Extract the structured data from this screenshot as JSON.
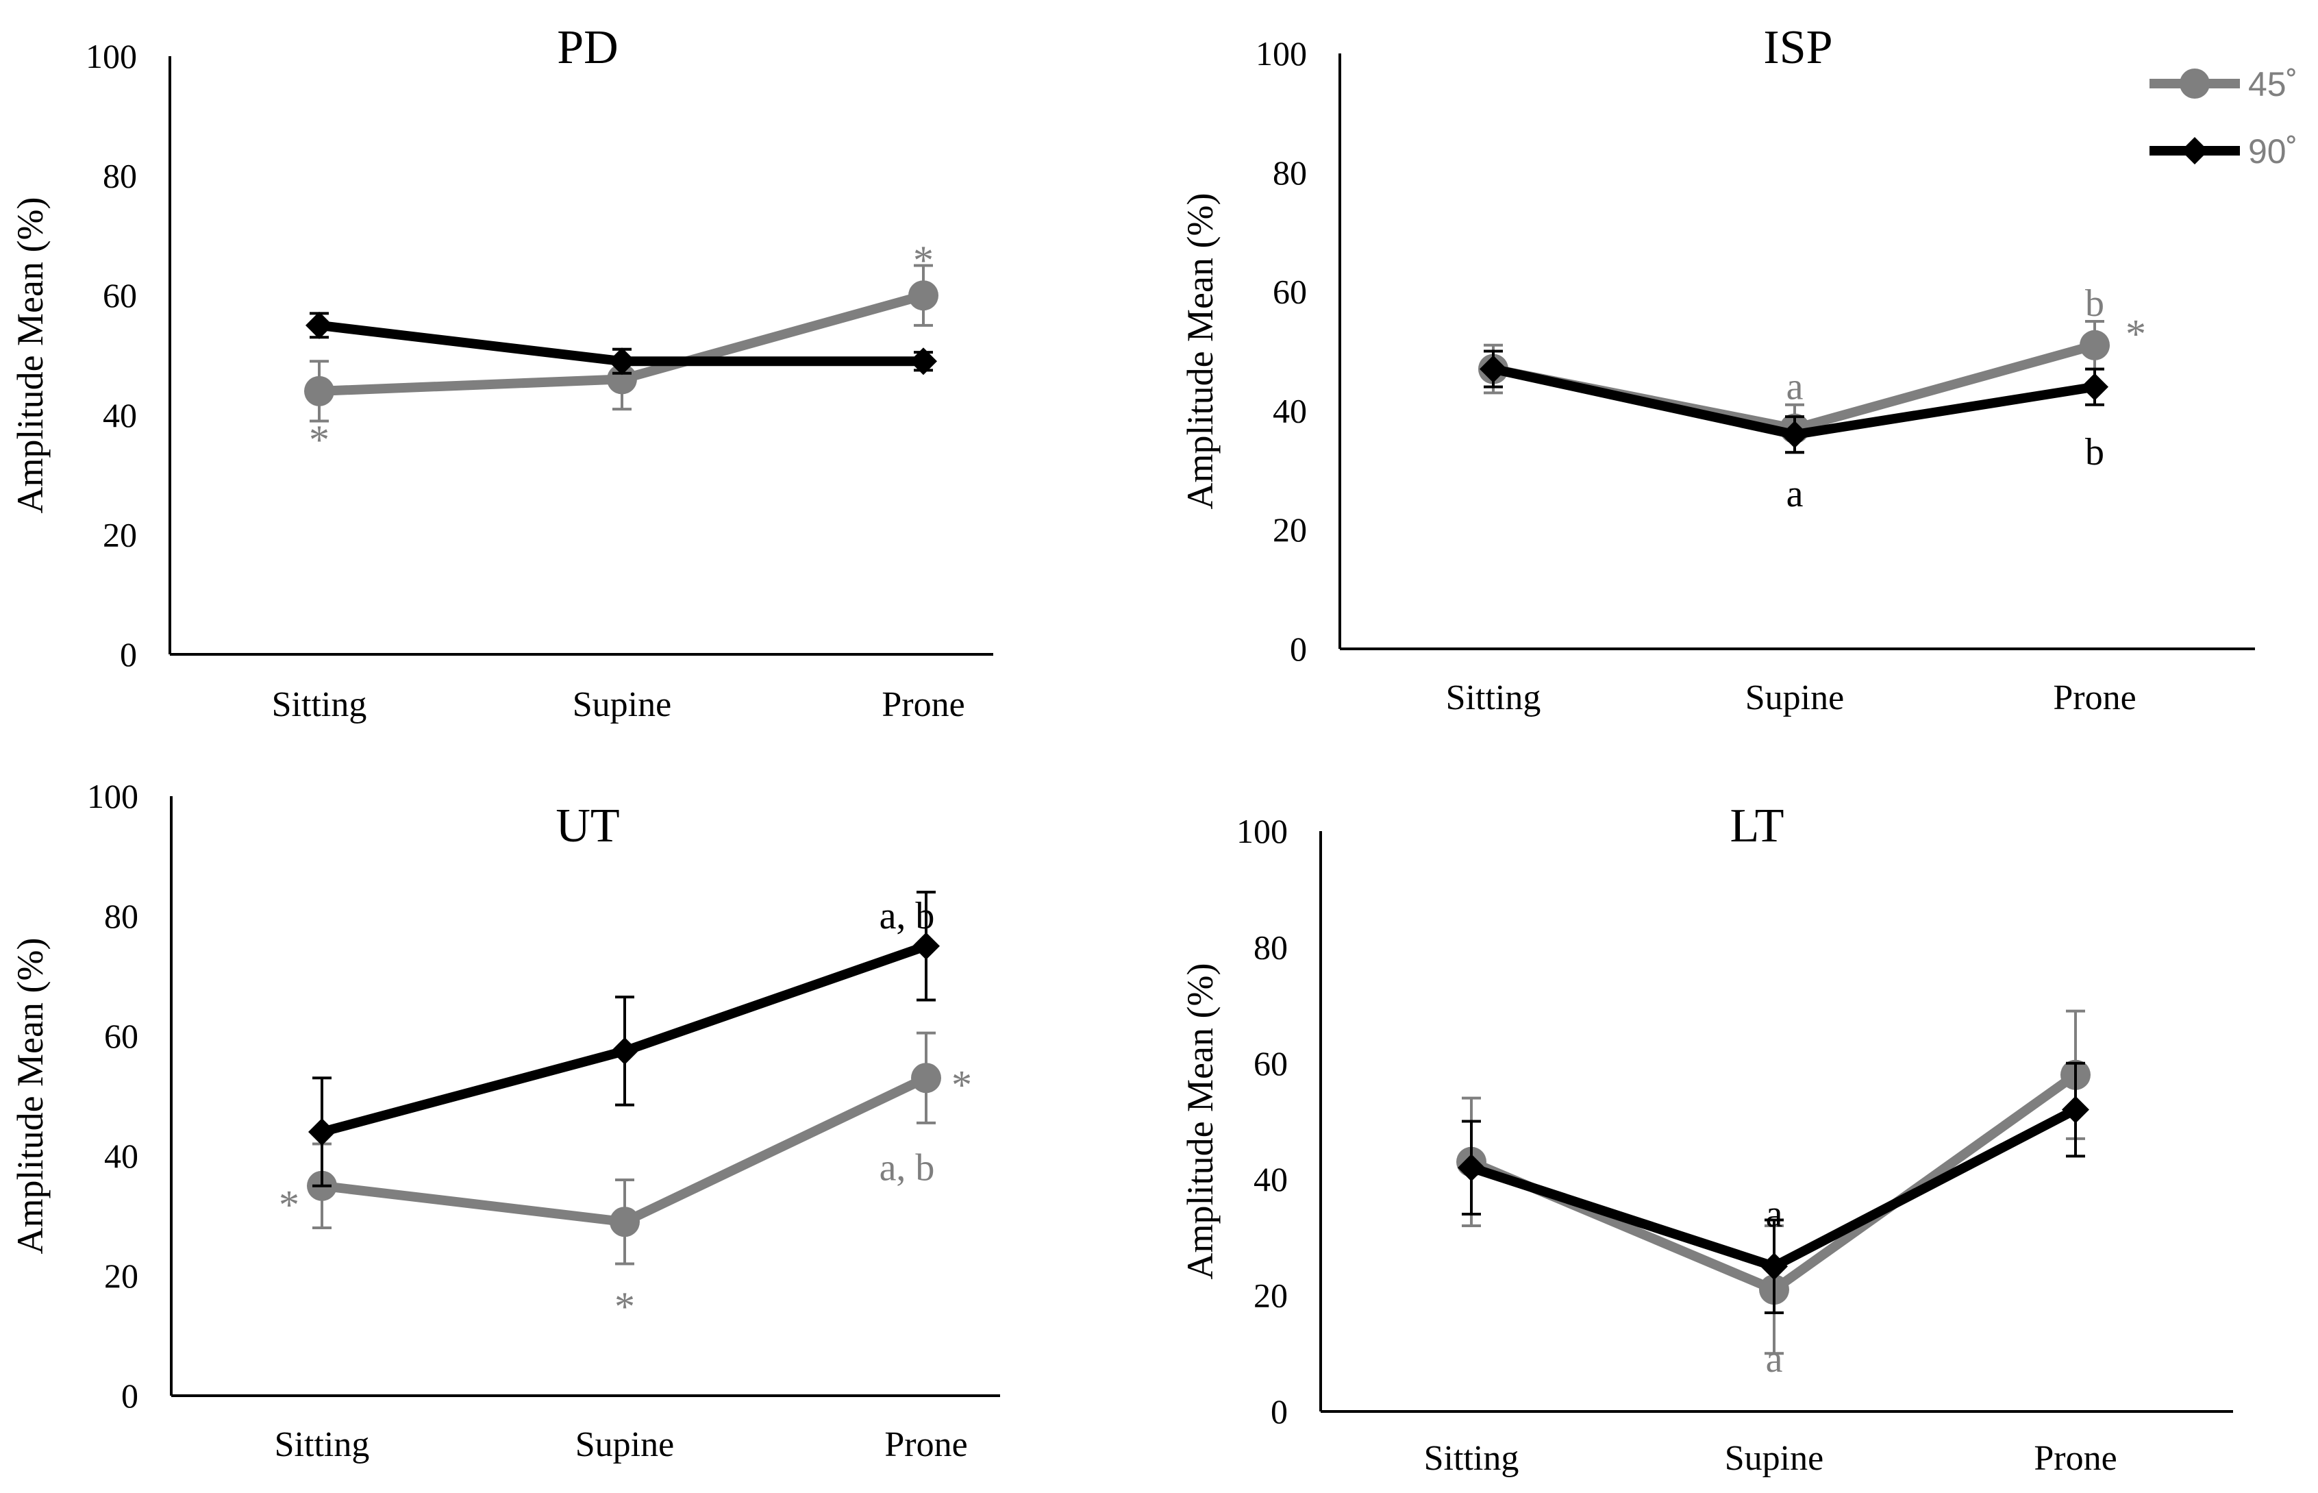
{
  "colors": {
    "deg45": "#7f7f7f",
    "deg90": "#000000",
    "axis": "#000000"
  },
  "legend": [
    {
      "name": "45˚",
      "color": "#7f7f7f",
      "marker": "circle"
    },
    {
      "name": "90˚",
      "color": "#000000",
      "marker": "diamond"
    }
  ],
  "chart_data": [
    {
      "type": "line",
      "title": "PD",
      "ylabel": "Amplitude  Mean (%)",
      "categories": [
        "Sitting",
        "Supine",
        "Prone"
      ],
      "ylim": [
        0,
        100
      ],
      "yticks": [
        0,
        20,
        40,
        60,
        80,
        100
      ],
      "series": [
        {
          "name": "45˚",
          "values": [
            44,
            46,
            60
          ],
          "error": [
            5,
            5,
            5
          ]
        },
        {
          "name": "90˚",
          "values": [
            55,
            49,
            49
          ],
          "error": [
            2,
            2,
            1.5
          ]
        }
      ],
      "annotations": [
        {
          "text": "*",
          "category": 0,
          "y": 37,
          "series": 0
        },
        {
          "text": "*",
          "category": 2,
          "y": 67,
          "series": 0
        }
      ]
    },
    {
      "type": "line",
      "title": "ISP",
      "ylabel": "Amplitude  Mean (%)",
      "categories": [
        "Sitting",
        "Supine",
        "Prone"
      ],
      "ylim": [
        0,
        100
      ],
      "yticks": [
        0,
        20,
        40,
        60,
        80,
        100
      ],
      "legend_position": "top-right",
      "series": [
        {
          "name": "45˚",
          "values": [
            47,
            37,
            51
          ],
          "error": [
            4,
            4,
            4
          ]
        },
        {
          "name": "90˚",
          "values": [
            47,
            36,
            44
          ],
          "error": [
            3,
            3,
            3
          ]
        }
      ],
      "annotations": [
        {
          "text": "a",
          "category": 1,
          "y": 44,
          "series": 0
        },
        {
          "text": "b",
          "category": 2,
          "y": 58,
          "series": 0
        },
        {
          "text": "*",
          "category": 2,
          "y": 54,
          "series": 0
        },
        {
          "text": "a",
          "category": 1,
          "y": 26,
          "series": 1
        },
        {
          "text": "b",
          "category": 2,
          "y": 33,
          "series": 1
        }
      ]
    },
    {
      "type": "line",
      "title": "UT",
      "ylabel": "Amplitude  Mean (%)",
      "categories": [
        "Sitting",
        "Supine",
        "Prone"
      ],
      "ylim": [
        0,
        100
      ],
      "yticks": [
        0,
        20,
        40,
        60,
        80,
        100
      ],
      "series": [
        {
          "name": "45˚",
          "values": [
            35,
            29,
            53
          ],
          "error": [
            7,
            7,
            7.5
          ]
        },
        {
          "name": "90˚",
          "values": [
            44,
            57.5,
            75
          ],
          "error": [
            9,
            9,
            9
          ]
        }
      ],
      "annotations": [
        {
          "text": "*",
          "category": 0,
          "y": 33,
          "series": 0
        },
        {
          "text": "*",
          "category": 1,
          "y": 16,
          "series": 0
        },
        {
          "text": "*",
          "category": 2,
          "y": 53,
          "series": 0
        },
        {
          "text": "a, b",
          "category": 2,
          "y": 38,
          "series": 0
        },
        {
          "text": "a, b",
          "category": 2,
          "y": 80,
          "series": 1
        }
      ]
    },
    {
      "type": "line",
      "title": "LT",
      "ylabel": "Amplitude  Mean (%)",
      "categories": [
        "Sitting",
        "Supine",
        "Prone"
      ],
      "ylim": [
        0,
        100
      ],
      "yticks": [
        0,
        20,
        40,
        60,
        80,
        100
      ],
      "series": [
        {
          "name": "45˚",
          "values": [
            43,
            21,
            58
          ],
          "error": [
            11,
            11,
            11
          ]
        },
        {
          "name": "90˚",
          "values": [
            42,
            25,
            52
          ],
          "error": [
            8,
            8,
            8
          ]
        }
      ],
      "annotations": [
        {
          "text": "a",
          "category": 1,
          "y": 9,
          "series": 0
        },
        {
          "text": "a",
          "category": 1,
          "y": 34,
          "series": 1
        }
      ]
    }
  ]
}
